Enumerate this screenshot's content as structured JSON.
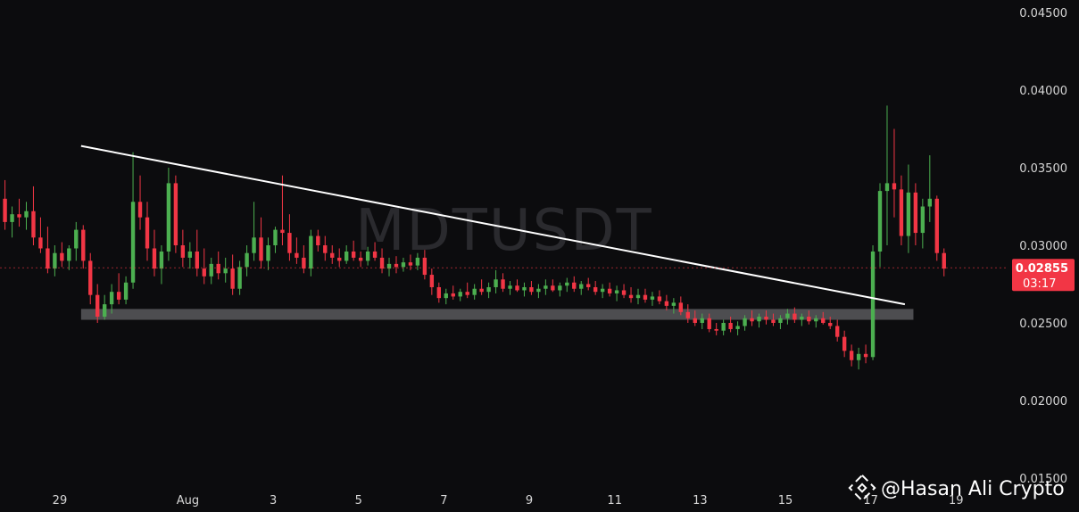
{
  "chart_data": {
    "type": "candlestick",
    "symbol_watermark": "MDTUSDT",
    "y_ticks": [
      "0.04500",
      "0.04000",
      "0.03500",
      "0.03000",
      "0.02500",
      "0.02000",
      "0.01500"
    ],
    "ylim": [
      0.015,
      0.045
    ],
    "x_ticks": [
      {
        "label": "29",
        "day": 0
      },
      {
        "label": "Aug",
        "day": 3
      },
      {
        "label": "3",
        "day": 5
      },
      {
        "label": "5",
        "day": 7
      },
      {
        "label": "7",
        "day": 9
      },
      {
        "label": "9",
        "day": 11
      },
      {
        "label": "11",
        "day": 13
      },
      {
        "label": "13",
        "day": 15
      },
      {
        "label": "15",
        "day": 17
      },
      {
        "label": "17",
        "day": 19
      },
      {
        "label": "19",
        "day": 21
      }
    ],
    "xlim": [
      -1.4,
      21.6
    ],
    "current_price": {
      "value": "0.02855",
      "countdown": "03:17",
      "level": 0.02855
    },
    "colors": {
      "up": "#4caf50",
      "down": "#f23645",
      "trendline": "#ffffff",
      "support_zone": "#4d4d50",
      "badge": "#f23645"
    },
    "trendline": {
      "start": [
        0.5,
        0.0364
      ],
      "end": [
        19.8,
        0.0262
      ]
    },
    "support_zone": {
      "x_range": [
        0.5,
        20.0
      ],
      "price_range": [
        0.0252,
        0.0259
      ]
    },
    "candles_per_day": 6,
    "candles": [
      [
        0.035,
        0.036,
        0.0325,
        0.033
      ],
      [
        0.033,
        0.0342,
        0.031,
        0.0315
      ],
      [
        0.0315,
        0.0325,
        0.0305,
        0.032
      ],
      [
        0.032,
        0.033,
        0.0312,
        0.0318
      ],
      [
        0.0318,
        0.0328,
        0.031,
        0.0322
      ],
      [
        0.0322,
        0.0338,
        0.03,
        0.0305
      ],
      [
        0.0305,
        0.0318,
        0.0295,
        0.0298
      ],
      [
        0.0298,
        0.0312,
        0.0282,
        0.0285
      ],
      [
        0.0285,
        0.03,
        0.028,
        0.0295
      ],
      [
        0.0295,
        0.0302,
        0.0286,
        0.029
      ],
      [
        0.029,
        0.03,
        0.0284,
        0.0298
      ],
      [
        0.0298,
        0.0315,
        0.029,
        0.031
      ],
      [
        0.031,
        0.0313,
        0.0285,
        0.029
      ],
      [
        0.029,
        0.0295,
        0.0262,
        0.0268
      ],
      [
        0.0268,
        0.0275,
        0.025,
        0.0254
      ],
      [
        0.0254,
        0.0268,
        0.0252,
        0.0262
      ],
      [
        0.0262,
        0.0275,
        0.0256,
        0.027
      ],
      [
        0.027,
        0.0282,
        0.0262,
        0.0265
      ],
      [
        0.0265,
        0.028,
        0.0262,
        0.0276
      ],
      [
        0.0276,
        0.036,
        0.0272,
        0.0328
      ],
      [
        0.0328,
        0.0345,
        0.031,
        0.0318
      ],
      [
        0.0318,
        0.0328,
        0.029,
        0.0298
      ],
      [
        0.0298,
        0.031,
        0.028,
        0.0285
      ],
      [
        0.0285,
        0.03,
        0.0275,
        0.0296
      ],
      [
        0.0296,
        0.035,
        0.029,
        0.034
      ],
      [
        0.034,
        0.0345,
        0.0295,
        0.03
      ],
      [
        0.03,
        0.031,
        0.0286,
        0.0292
      ],
      [
        0.0292,
        0.0302,
        0.0285,
        0.0296
      ],
      [
        0.0296,
        0.031,
        0.028,
        0.0285
      ],
      [
        0.0285,
        0.0298,
        0.0275,
        0.028
      ],
      [
        0.028,
        0.0292,
        0.0275,
        0.0288
      ],
      [
        0.0288,
        0.0296,
        0.0278,
        0.0282
      ],
      [
        0.0282,
        0.0292,
        0.0276,
        0.0285
      ],
      [
        0.0285,
        0.0294,
        0.0268,
        0.0272
      ],
      [
        0.0272,
        0.029,
        0.0268,
        0.0286
      ],
      [
        0.0286,
        0.03,
        0.028,
        0.0295
      ],
      [
        0.0295,
        0.0328,
        0.029,
        0.0305
      ],
      [
        0.0305,
        0.0318,
        0.0285,
        0.029
      ],
      [
        0.029,
        0.0305,
        0.0284,
        0.03
      ],
      [
        0.03,
        0.0312,
        0.0295,
        0.031
      ],
      [
        0.031,
        0.0345,
        0.03,
        0.0308
      ],
      [
        0.0308,
        0.032,
        0.029,
        0.0295
      ],
      [
        0.0295,
        0.0305,
        0.0288,
        0.0292
      ],
      [
        0.0292,
        0.03,
        0.0282,
        0.0285
      ],
      [
        0.0285,
        0.031,
        0.028,
        0.0306
      ],
      [
        0.0306,
        0.031,
        0.0296,
        0.03
      ],
      [
        0.03,
        0.0306,
        0.029,
        0.0295
      ],
      [
        0.0295,
        0.03,
        0.0288,
        0.0292
      ],
      [
        0.0292,
        0.0298,
        0.0286,
        0.029
      ],
      [
        0.029,
        0.03,
        0.0288,
        0.0296
      ],
      [
        0.0296,
        0.0303,
        0.029,
        0.0292
      ],
      [
        0.0292,
        0.0296,
        0.0286,
        0.029
      ],
      [
        0.029,
        0.0299,
        0.0287,
        0.0296
      ],
      [
        0.0296,
        0.0302,
        0.029,
        0.0292
      ],
      [
        0.0292,
        0.0298,
        0.0282,
        0.0285
      ],
      [
        0.0285,
        0.0292,
        0.028,
        0.0288
      ],
      [
        0.0288,
        0.0293,
        0.0282,
        0.0286
      ],
      [
        0.0286,
        0.0292,
        0.0283,
        0.0289
      ],
      [
        0.0289,
        0.0294,
        0.0284,
        0.0287
      ],
      [
        0.0287,
        0.0295,
        0.0284,
        0.0292
      ],
      [
        0.0292,
        0.0297,
        0.0278,
        0.0281
      ],
      [
        0.0281,
        0.0285,
        0.0268,
        0.0273
      ],
      [
        0.0273,
        0.0276,
        0.0263,
        0.0266
      ],
      [
        0.0266,
        0.0272,
        0.0262,
        0.0269
      ],
      [
        0.0269,
        0.0274,
        0.0265,
        0.0267
      ],
      [
        0.0267,
        0.0272,
        0.0264,
        0.027
      ],
      [
        0.027,
        0.0276,
        0.0266,
        0.0268
      ],
      [
        0.0268,
        0.0275,
        0.0265,
        0.0272
      ],
      [
        0.0272,
        0.0278,
        0.0268,
        0.027
      ],
      [
        0.027,
        0.0276,
        0.0266,
        0.0273
      ],
      [
        0.0273,
        0.0284,
        0.0269,
        0.0278
      ],
      [
        0.0278,
        0.0282,
        0.027,
        0.0272
      ],
      [
        0.0272,
        0.0277,
        0.0268,
        0.0274
      ],
      [
        0.0274,
        0.0278,
        0.027,
        0.0271
      ],
      [
        0.0271,
        0.0276,
        0.0267,
        0.0273
      ],
      [
        0.0273,
        0.0277,
        0.0268,
        0.027
      ],
      [
        0.027,
        0.0275,
        0.0266,
        0.0272
      ],
      [
        0.0272,
        0.0278,
        0.0268,
        0.0274
      ],
      [
        0.0274,
        0.0278,
        0.027,
        0.0271
      ],
      [
        0.0271,
        0.0276,
        0.0267,
        0.0274
      ],
      [
        0.0274,
        0.0279,
        0.027,
        0.0276
      ],
      [
        0.0276,
        0.028,
        0.027,
        0.0272
      ],
      [
        0.0272,
        0.0277,
        0.0268,
        0.0275
      ],
      [
        0.0275,
        0.0279,
        0.0271,
        0.0273
      ],
      [
        0.0273,
        0.0277,
        0.0268,
        0.027
      ],
      [
        0.027,
        0.0275,
        0.0266,
        0.0272
      ],
      [
        0.0272,
        0.0276,
        0.0267,
        0.0269
      ],
      [
        0.0269,
        0.0274,
        0.0264,
        0.0271
      ],
      [
        0.0271,
        0.0275,
        0.0266,
        0.0268
      ],
      [
        0.0268,
        0.0273,
        0.0263,
        0.0266
      ],
      [
        0.0266,
        0.0272,
        0.0262,
        0.0268
      ],
      [
        0.0268,
        0.0272,
        0.0263,
        0.0265
      ],
      [
        0.0265,
        0.027,
        0.0261,
        0.0267
      ],
      [
        0.0267,
        0.0271,
        0.0262,
        0.0264
      ],
      [
        0.0264,
        0.0268,
        0.0258,
        0.0261
      ],
      [
        0.0261,
        0.0266,
        0.0256,
        0.0263
      ],
      [
        0.0263,
        0.0267,
        0.0255,
        0.0257
      ],
      [
        0.0257,
        0.0262,
        0.025,
        0.0253
      ],
      [
        0.0253,
        0.0258,
        0.0248,
        0.025
      ],
      [
        0.025,
        0.0256,
        0.0246,
        0.0253
      ],
      [
        0.0253,
        0.0256,
        0.0244,
        0.0246
      ],
      [
        0.0246,
        0.025,
        0.0242,
        0.0245
      ],
      [
        0.0245,
        0.0252,
        0.0242,
        0.025
      ],
      [
        0.025,
        0.0254,
        0.0244,
        0.0246
      ],
      [
        0.0246,
        0.0251,
        0.0242,
        0.0248
      ],
      [
        0.0248,
        0.0255,
        0.0245,
        0.0253
      ],
      [
        0.0253,
        0.0258,
        0.0248,
        0.0251
      ],
      [
        0.0251,
        0.0256,
        0.0247,
        0.0254
      ],
      [
        0.0254,
        0.0258,
        0.0249,
        0.0252
      ],
      [
        0.0252,
        0.0256,
        0.0248,
        0.025
      ],
      [
        0.025,
        0.0255,
        0.0246,
        0.0253
      ],
      [
        0.0253,
        0.0259,
        0.0249,
        0.0256
      ],
      [
        0.0256,
        0.026,
        0.025,
        0.0252
      ],
      [
        0.0252,
        0.0256,
        0.0248,
        0.0254
      ],
      [
        0.0254,
        0.0258,
        0.0249,
        0.0251
      ],
      [
        0.0251,
        0.0255,
        0.0247,
        0.0253
      ],
      [
        0.0253,
        0.0257,
        0.0249,
        0.025
      ],
      [
        0.025,
        0.0254,
        0.0246,
        0.0248
      ],
      [
        0.0248,
        0.0252,
        0.0238,
        0.0241
      ],
      [
        0.0241,
        0.0245,
        0.0228,
        0.0232
      ],
      [
        0.0232,
        0.0236,
        0.0222,
        0.0226
      ],
      [
        0.0226,
        0.0234,
        0.022,
        0.023
      ],
      [
        0.023,
        0.0236,
        0.0224,
        0.0228
      ],
      [
        0.0228,
        0.03,
        0.0226,
        0.0296
      ],
      [
        0.0296,
        0.034,
        0.0286,
        0.0335
      ],
      [
        0.0335,
        0.039,
        0.03,
        0.034
      ],
      [
        0.034,
        0.0375,
        0.0318,
        0.0336
      ],
      [
        0.0336,
        0.0345,
        0.03,
        0.0306
      ],
      [
        0.0306,
        0.0352,
        0.0295,
        0.0334
      ],
      [
        0.0334,
        0.034,
        0.03,
        0.0308
      ],
      [
        0.0308,
        0.033,
        0.0298,
        0.0325
      ],
      [
        0.0325,
        0.0358,
        0.0315,
        0.033
      ],
      [
        0.033,
        0.0332,
        0.029,
        0.0295
      ],
      [
        0.0295,
        0.0298,
        0.028,
        0.0285
      ]
    ]
  },
  "branding": {
    "handle": "@Hasan Ali Crypto",
    "logo_icon": "binance-diamond-icon"
  }
}
